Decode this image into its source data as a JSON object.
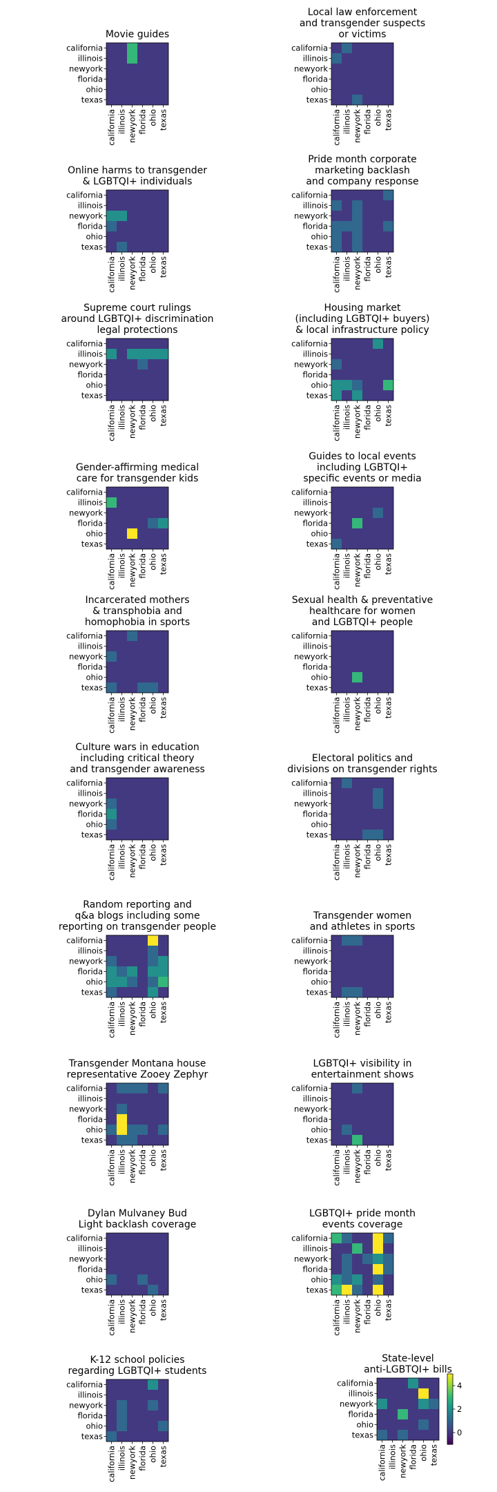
{
  "row_labels": [
    "california",
    "illinois",
    "newyork",
    "florida",
    "ohio",
    "texas"
  ],
  "col_labels": [
    "california",
    "illinois",
    "newyork",
    "florida",
    "ohio",
    "texas"
  ],
  "colorbar": {
    "ticks": [
      0,
      2,
      4
    ],
    "min": -1,
    "max": 5,
    "colormap": "viridis"
  },
  "chart_data": [
    {
      "type": "heatmap",
      "title": "Movie guides",
      "values": [
        [
          0,
          0,
          3,
          0,
          0,
          0
        ],
        [
          0,
          0,
          3,
          0,
          0,
          0
        ],
        [
          0,
          0,
          0,
          0,
          0,
          0
        ],
        [
          0,
          0,
          0,
          0,
          0,
          0
        ],
        [
          0,
          0,
          0,
          0,
          0,
          0
        ],
        [
          0,
          0,
          0,
          0,
          0,
          0
        ]
      ]
    },
    {
      "type": "heatmap",
      "title": "Local law enforcement\nand transgender suspects\nor victims",
      "values": [
        [
          0,
          1,
          0,
          0,
          0,
          0
        ],
        [
          1,
          0,
          0,
          0,
          0,
          0
        ],
        [
          0,
          0,
          0,
          0,
          0,
          0
        ],
        [
          0,
          0,
          0,
          0,
          0,
          0
        ],
        [
          0,
          0,
          0,
          0,
          0,
          0
        ],
        [
          0,
          0,
          1,
          0,
          0,
          0
        ]
      ]
    },
    {
      "type": "heatmap",
      "title": "Online harms to transgender\n& LGBTQI+ individuals",
      "values": [
        [
          0,
          0,
          0,
          0,
          0,
          0
        ],
        [
          0,
          0,
          0,
          0,
          0,
          0
        ],
        [
          2,
          2,
          0,
          0,
          0,
          0
        ],
        [
          1,
          0,
          0,
          0,
          0,
          0
        ],
        [
          0,
          0,
          0,
          0,
          0,
          0
        ],
        [
          0,
          1,
          0,
          0,
          0,
          0
        ]
      ]
    },
    {
      "type": "heatmap",
      "title": "Pride month corporate\nmarketing backlash\nand company response",
      "values": [
        [
          0,
          0,
          0,
          0,
          0,
          1
        ],
        [
          1,
          0,
          1,
          0,
          0,
          0
        ],
        [
          0,
          0,
          1,
          0,
          0,
          0
        ],
        [
          1,
          1,
          1,
          0,
          0,
          1
        ],
        [
          1,
          0,
          1,
          0,
          0,
          0
        ],
        [
          1,
          0,
          1,
          0,
          0,
          0
        ]
      ]
    },
    {
      "type": "heatmap",
      "title": "Supreme court rulings\naround LGBTQI+ discrimination\nlegal protections",
      "values": [
        [
          0,
          0,
          0,
          0,
          0,
          0
        ],
        [
          2,
          0,
          2,
          2,
          2,
          2
        ],
        [
          0,
          0,
          0,
          1,
          0,
          0
        ],
        [
          0,
          0,
          0,
          0,
          0,
          0
        ],
        [
          0,
          0,
          0,
          0,
          0,
          0
        ],
        [
          0,
          0,
          0,
          0,
          0,
          0
        ]
      ]
    },
    {
      "type": "heatmap",
      "title": "Housing market\n(including LGBTQI+ buyers)\n& local infrastructure policy",
      "values": [
        [
          0,
          0,
          0,
          0,
          2,
          0
        ],
        [
          0,
          0,
          0,
          0,
          0,
          0
        ],
        [
          1,
          0,
          0,
          0,
          0,
          0
        ],
        [
          0,
          0,
          0,
          0,
          0,
          0
        ],
        [
          2,
          2,
          1,
          0,
          0,
          3
        ],
        [
          2,
          0,
          2,
          0,
          0,
          0
        ]
      ]
    },
    {
      "type": "heatmap",
      "title": "Gender-affirming medical\ncare for transgender kids",
      "values": [
        [
          0,
          0,
          0,
          0,
          0,
          0
        ],
        [
          3,
          0,
          0,
          0,
          0,
          0
        ],
        [
          0,
          0,
          0,
          0,
          0,
          0
        ],
        [
          0,
          0,
          0,
          0,
          1,
          2
        ],
        [
          0,
          0,
          5,
          0,
          0,
          0
        ],
        [
          0,
          0,
          0,
          0,
          0,
          0
        ]
      ]
    },
    {
      "type": "heatmap",
      "title": "Guides to local events\nincluding LGBTQI+\nspecific events or media",
      "values": [
        [
          0,
          0,
          0,
          0,
          0,
          0
        ],
        [
          0,
          0,
          0,
          0,
          0,
          0
        ],
        [
          0,
          0,
          0,
          0,
          1,
          0
        ],
        [
          0,
          0,
          3,
          0,
          0,
          0
        ],
        [
          0,
          0,
          0,
          0,
          0,
          0
        ],
        [
          1,
          0,
          0,
          0,
          0,
          0
        ]
      ]
    },
    {
      "type": "heatmap",
      "title": "Incarcerated mothers\n& transphobia and\nhomophobia in sports",
      "values": [
        [
          0,
          0,
          1,
          0,
          0,
          0
        ],
        [
          0,
          0,
          0,
          0,
          0,
          0
        ],
        [
          1,
          0,
          0,
          0,
          0,
          0
        ],
        [
          0,
          0,
          0,
          0,
          0,
          0
        ],
        [
          0,
          0,
          0,
          0,
          0,
          0
        ],
        [
          1,
          0,
          0,
          1,
          1,
          0
        ]
      ]
    },
    {
      "type": "heatmap",
      "title": "Sexual health & preventative\nhealthcare for women\nand LGBTQI+ people",
      "values": [
        [
          0,
          0,
          0,
          0,
          0,
          0
        ],
        [
          0,
          0,
          0,
          0,
          0,
          0
        ],
        [
          0,
          0,
          0,
          0,
          0,
          0
        ],
        [
          0,
          0,
          0,
          0,
          0,
          0
        ],
        [
          0,
          0,
          3,
          0,
          0,
          0
        ],
        [
          0,
          0,
          0,
          0,
          0,
          0
        ]
      ]
    },
    {
      "type": "heatmap",
      "title": "Culture wars in education\nincluding critical theory\nand transgender awareness",
      "values": [
        [
          0,
          0,
          0,
          0,
          0,
          0
        ],
        [
          0,
          0,
          0,
          0,
          0,
          0
        ],
        [
          1,
          0,
          0,
          0,
          0,
          0
        ],
        [
          2,
          0,
          0,
          0,
          0,
          0
        ],
        [
          1,
          0,
          0,
          0,
          0,
          0
        ],
        [
          0,
          0,
          0,
          0,
          0,
          0
        ]
      ]
    },
    {
      "type": "heatmap",
      "title": "Electoral politics and\ndivisions on transgender rights",
      "values": [
        [
          0,
          1,
          0,
          0,
          0,
          0
        ],
        [
          0,
          0,
          0,
          0,
          1,
          0
        ],
        [
          0,
          0,
          0,
          0,
          1,
          0
        ],
        [
          0,
          0,
          0,
          0,
          0,
          0
        ],
        [
          0,
          0,
          0,
          0,
          0,
          0
        ],
        [
          0,
          0,
          0,
          1,
          1,
          0
        ]
      ]
    },
    {
      "type": "heatmap",
      "title": "Random reporting and\nq&a blogs including some\nreporting on transgender people",
      "values": [
        [
          0,
          0,
          0,
          0,
          5,
          0
        ],
        [
          0,
          0,
          0,
          0,
          1,
          0
        ],
        [
          1,
          0,
          0,
          0,
          1,
          2
        ],
        [
          2,
          1,
          2,
          0,
          2,
          2
        ],
        [
          2,
          2,
          1,
          0,
          1,
          3
        ],
        [
          1,
          0,
          0,
          0,
          2,
          0
        ]
      ]
    },
    {
      "type": "heatmap",
      "title": "Transgender women\nand athletes in sports",
      "values": [
        [
          0,
          1,
          1,
          0,
          0,
          0
        ],
        [
          0,
          0,
          0,
          0,
          0,
          0
        ],
        [
          0,
          0,
          0,
          0,
          0,
          0
        ],
        [
          0,
          0,
          0,
          0,
          0,
          0
        ],
        [
          0,
          0,
          0,
          0,
          0,
          0
        ],
        [
          0,
          1,
          1,
          0,
          0,
          0
        ]
      ]
    },
    {
      "type": "heatmap",
      "title": "Transgender Montana house\nrepresentative Zooey Zephyr",
      "values": [
        [
          0,
          1,
          1,
          1,
          0,
          1
        ],
        [
          0,
          0,
          0,
          0,
          0,
          0
        ],
        [
          0,
          1,
          0,
          0,
          0,
          0
        ],
        [
          0,
          5,
          0,
          0,
          0,
          0
        ],
        [
          1,
          5,
          1,
          1,
          0,
          1
        ],
        [
          0,
          1,
          1,
          0,
          0,
          0
        ]
      ]
    },
    {
      "type": "heatmap",
      "title": "LGBTQI+ visibility in\nentertainment shows",
      "values": [
        [
          0,
          0,
          1,
          0,
          0,
          0
        ],
        [
          0,
          0,
          0,
          0,
          0,
          0
        ],
        [
          0,
          0,
          0,
          0,
          0,
          0
        ],
        [
          0,
          0,
          0,
          0,
          0,
          0
        ],
        [
          0,
          1,
          0,
          0,
          0,
          0
        ],
        [
          0,
          0,
          3,
          0,
          0,
          0
        ]
      ]
    },
    {
      "type": "heatmap",
      "title": "Dylan Mulvaney Bud\nLight backlash coverage",
      "values": [
        [
          0,
          0,
          0,
          0,
          0,
          0
        ],
        [
          0,
          0,
          0,
          0,
          0,
          0
        ],
        [
          0,
          0,
          0,
          0,
          0,
          0
        ],
        [
          0,
          0,
          0,
          0,
          0,
          0
        ],
        [
          1,
          0,
          0,
          1,
          0,
          0
        ],
        [
          0,
          0,
          0,
          0,
          1,
          0
        ]
      ]
    },
    {
      "type": "heatmap",
      "title": "LGBTQI+ pride month\nevents coverage",
      "values": [
        [
          3,
          1,
          0,
          0,
          5,
          1
        ],
        [
          0,
          0,
          3,
          0,
          5,
          0
        ],
        [
          0,
          1,
          0,
          1,
          2,
          1
        ],
        [
          0,
          1,
          0,
          0,
          5,
          1
        ],
        [
          2,
          1,
          2,
          0,
          1,
          0
        ],
        [
          3,
          5,
          1,
          0,
          5,
          0
        ]
      ]
    },
    {
      "type": "heatmap",
      "title": "K-12 school policies\nregarding LGBTQI+ students",
      "values": [
        [
          0,
          0,
          0,
          0,
          2,
          0
        ],
        [
          0,
          0,
          0,
          0,
          0,
          0
        ],
        [
          0,
          1,
          0,
          0,
          1,
          0
        ],
        [
          0,
          1,
          0,
          0,
          0,
          0
        ],
        [
          0,
          1,
          0,
          0,
          0,
          1
        ],
        [
          1,
          0,
          0,
          0,
          0,
          0
        ]
      ]
    },
    {
      "type": "heatmap",
      "title": "State-level\nanti-LGBTQI+ bills",
      "values": [
        [
          0,
          0,
          0,
          2,
          0,
          0
        ],
        [
          0,
          0,
          0,
          0,
          5,
          0
        ],
        [
          2,
          0,
          0,
          0,
          2,
          1
        ],
        [
          0,
          0,
          3,
          0,
          0,
          0
        ],
        [
          0,
          0,
          0,
          0,
          1,
          0
        ],
        [
          1,
          0,
          1,
          0,
          0,
          0
        ]
      ]
    }
  ]
}
